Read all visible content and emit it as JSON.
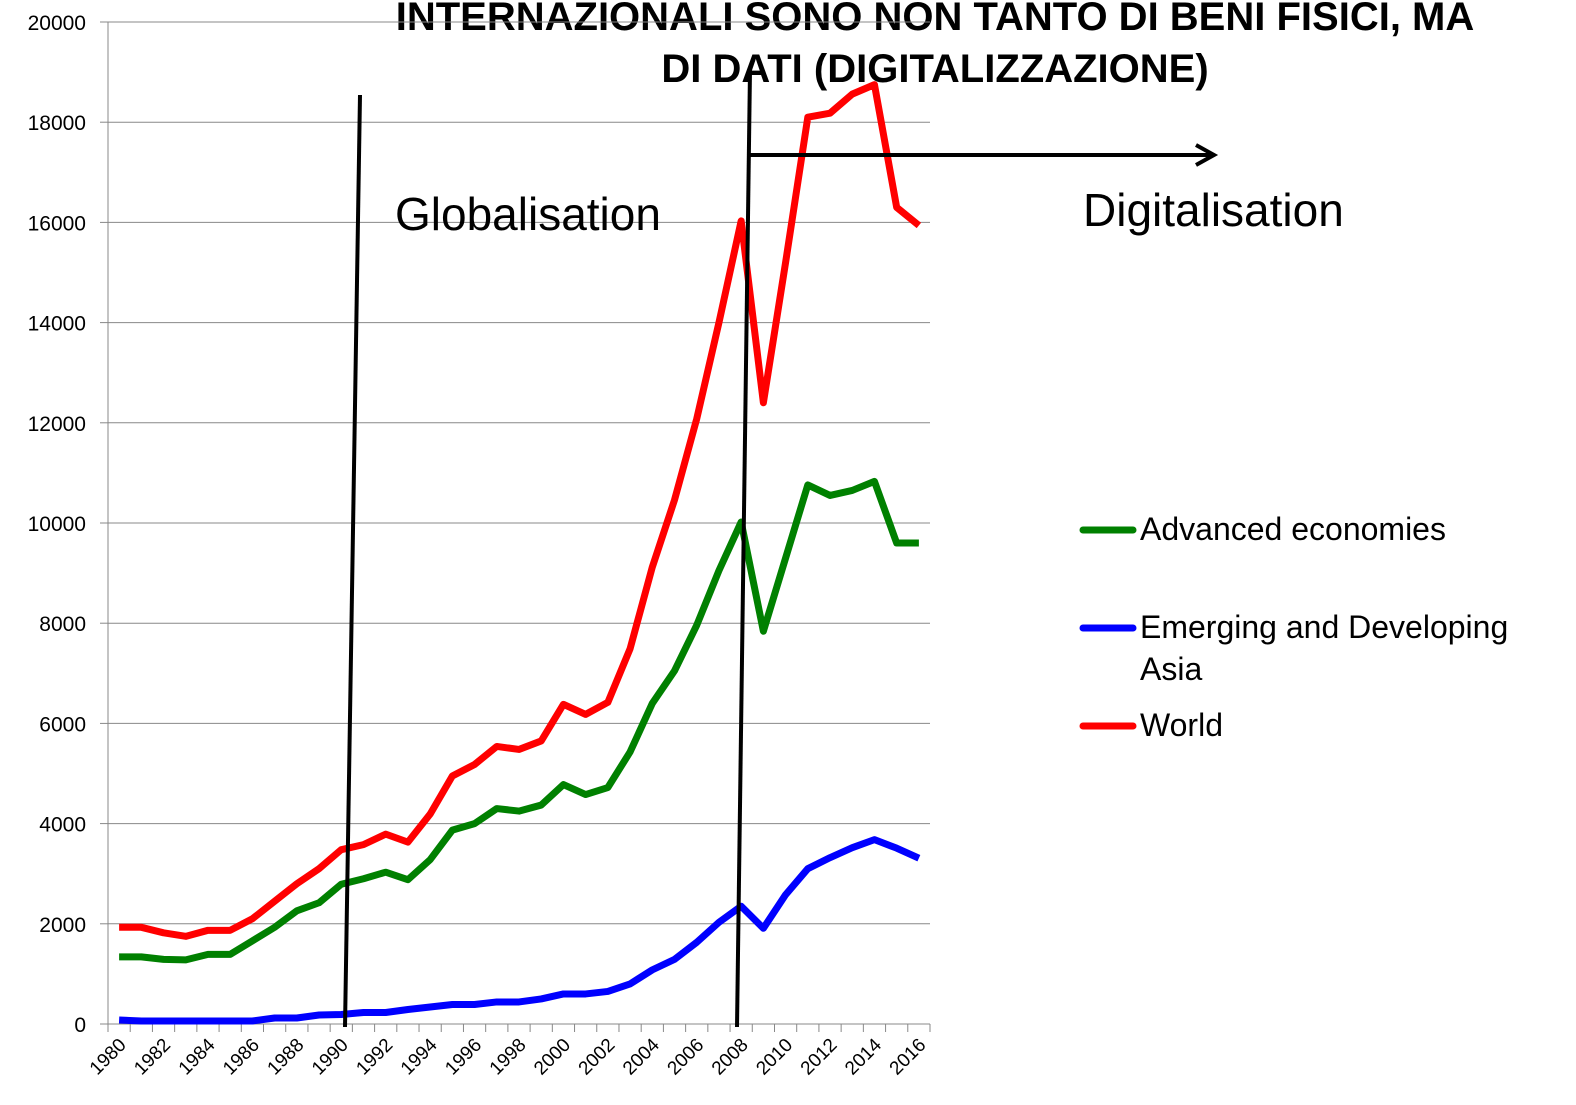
{
  "chart_data": {
    "type": "line",
    "title": [
      "INTERNAZIONALI SONO NON TANTO DI BENI FISICI, MA",
      "DI DATI (DIGITALIZZAZIONE)"
    ],
    "annotations": [
      "Globalisation",
      "Digitalisation"
    ],
    "categories": [
      "1980",
      null,
      "1982",
      null,
      "1984",
      null,
      "1986",
      null,
      "1988",
      null,
      "1990",
      null,
      "1992",
      null,
      "1994",
      null,
      "1996",
      null,
      "1998",
      null,
      "2000",
      null,
      "2002",
      null,
      "2004",
      null,
      "2006",
      null,
      "2008",
      null,
      "2010",
      null,
      "2012",
      null,
      "2014",
      null,
      "2016"
    ],
    "series": [
      {
        "name": "Advanced economies",
        "color": "#008000",
        "values": [
          1340,
          1340,
          1290,
          1280,
          1390,
          1390,
          1660,
          1930,
          2260,
          2420,
          2790,
          2900,
          3030,
          2880,
          3280,
          3870,
          4000,
          4300,
          4250,
          4370,
          4780,
          4580,
          4720,
          5430,
          6400,
          7050,
          7960,
          9050,
          10020,
          7840,
          9300,
          10760,
          10550,
          10650,
          10830,
          9600,
          9600
        ]
      },
      {
        "name": "Emerging and Developing Asia",
        "color": "#0000ff",
        "values": [
          80,
          60,
          60,
          60,
          60,
          60,
          60,
          120,
          120,
          180,
          190,
          230,
          230,
          290,
          340,
          390,
          390,
          440,
          440,
          500,
          600,
          600,
          650,
          800,
          1080,
          1290,
          1630,
          2030,
          2350,
          1910,
          2580,
          3100,
          3320,
          3520,
          3680,
          3510,
          3310
        ]
      },
      {
        "name": "World",
        "color": "#ff0000",
        "values": [
          1930,
          1930,
          1820,
          1750,
          1870,
          1870,
          2100,
          2450,
          2800,
          3100,
          3480,
          3580,
          3790,
          3630,
          4190,
          4950,
          5180,
          5540,
          5480,
          5650,
          6380,
          6180,
          6420,
          7490,
          9120,
          10460,
          12080,
          14000,
          16030,
          12400,
          15200,
          18100,
          18180,
          18560,
          18750,
          16300,
          15940
        ]
      }
    ],
    "ylim": [
      0,
      20000
    ],
    "yticks": [
      0,
      2000,
      4000,
      6000,
      8000,
      10000,
      12000,
      14000,
      16000,
      18000,
      20000
    ],
    "grid": true
  }
}
